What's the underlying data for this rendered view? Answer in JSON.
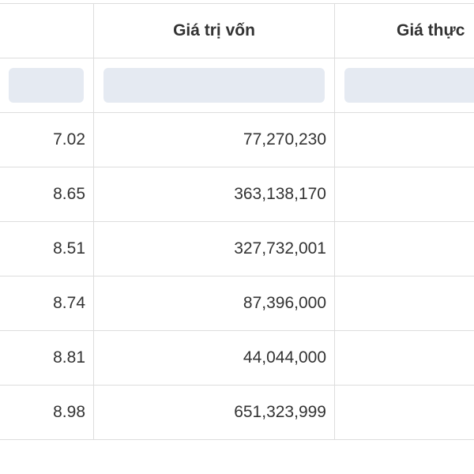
{
  "table": {
    "columns": [
      {
        "header": ""
      },
      {
        "header": "Giá trị vốn"
      },
      {
        "header": "Giá thực"
      }
    ],
    "rows": [
      {
        "col1": "7.02",
        "col2": "77,270,230",
        "col3": ""
      },
      {
        "col1": "8.65",
        "col2": "363,138,170",
        "col3": ""
      },
      {
        "col1": "8.51",
        "col2": "327,732,001",
        "col3": ""
      },
      {
        "col1": "8.74",
        "col2": "87,396,000",
        "col3": ""
      },
      {
        "col1": "8.81",
        "col2": "44,044,000",
        "col3": ""
      },
      {
        "col1": "8.98",
        "col2": "651,323,999",
        "col3": ""
      }
    ]
  }
}
